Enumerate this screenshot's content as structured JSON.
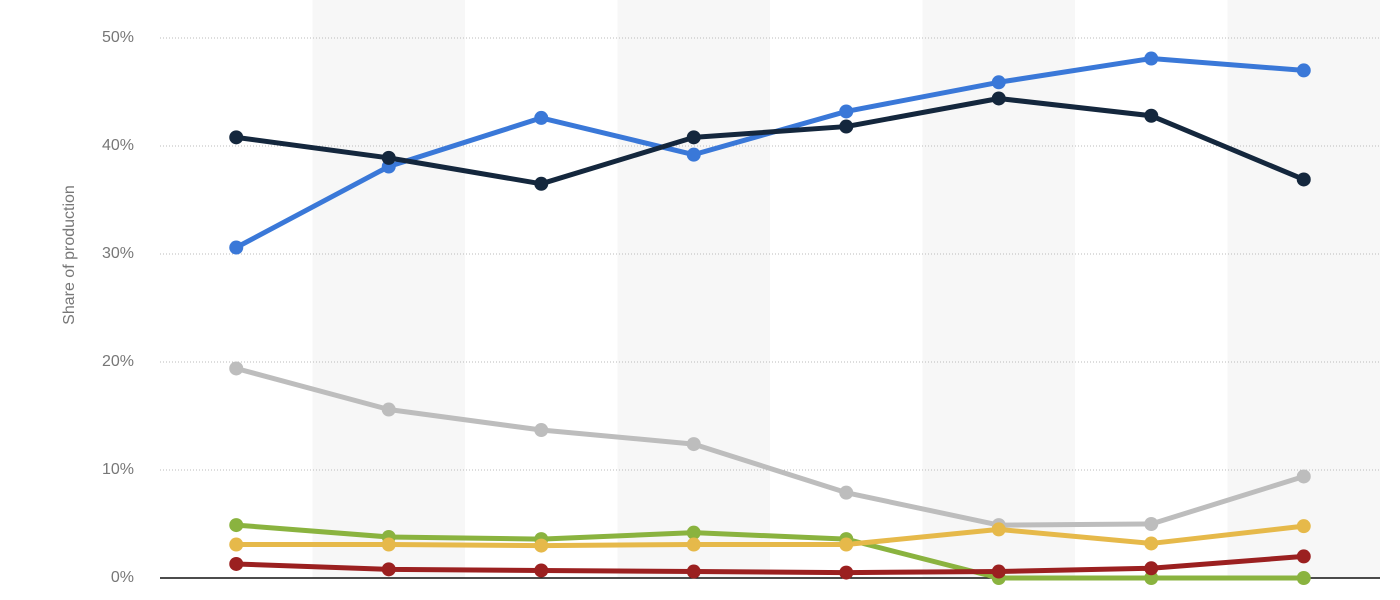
{
  "chart_data": {
    "type": "line",
    "y_label": "Share of production",
    "categories": [
      null,
      null,
      null,
      null,
      null,
      null,
      null,
      null
    ],
    "series": [
      {
        "color": "#3a78d8",
        "values": [
          30.6,
          38.1,
          42.6,
          39.2,
          43.2,
          45.9,
          48.1,
          47.0
        ]
      },
      {
        "color": "#14273d",
        "values": [
          40.8,
          38.9,
          36.5,
          40.8,
          41.8,
          44.4,
          42.8,
          36.9
        ]
      },
      {
        "color": "#bdbdbd",
        "values": [
          19.4,
          15.6,
          13.7,
          12.4,
          7.9,
          4.9,
          5.0,
          9.4
        ]
      },
      {
        "color": "#8ab33f",
        "values": [
          4.9,
          3.8,
          3.6,
          4.2,
          3.6,
          0,
          0,
          0
        ]
      },
      {
        "color": "#e6b94a",
        "values": [
          3.1,
          3.1,
          3.0,
          3.1,
          3.1,
          4.5,
          3.2,
          4.8
        ]
      },
      {
        "color": "#9b2020",
        "values": [
          1.3,
          0.8,
          0.7,
          0.6,
          0.5,
          0.6,
          0.9,
          2.0
        ]
      }
    ],
    "ylim": [
      0,
      50
    ],
    "yticks": [
      {
        "value": 0,
        "label": "0%"
      },
      {
        "value": 10,
        "label": "10%"
      },
      {
        "value": 20,
        "label": "20%"
      },
      {
        "value": 30,
        "label": "30%"
      },
      {
        "value": 40,
        "label": "40%"
      },
      {
        "value": 50,
        "label": "50%"
      }
    ],
    "grid": true
  }
}
